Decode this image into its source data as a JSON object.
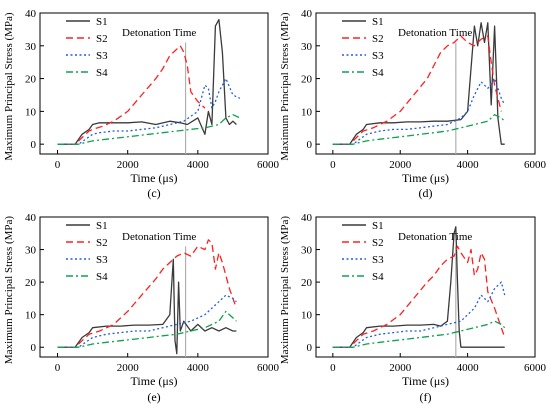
{
  "colors": {
    "S1": "#3a3a3a",
    "S2": "#ff2020",
    "S3": "#1f5fe0",
    "S4": "#10a050",
    "detonation_line": "#b0b0b0",
    "axis": "#000000"
  },
  "chart_data": [
    {
      "type": "line",
      "panel_label": "(c)",
      "xlabel": "Time (μs)",
      "ylabel": "Maximum Principal Stress (MPa)",
      "xlim": [
        -500,
        6000
      ],
      "ylim": [
        -3,
        40
      ],
      "xticks": [
        0,
        2000,
        4000,
        6000
      ],
      "yticks": [
        0,
        10,
        20,
        30,
        40
      ],
      "detonation_time": 3650,
      "annotation": "Detonation Time",
      "legend": [
        "S1",
        "S2",
        "S3",
        "S4"
      ],
      "legend_position": "top-left",
      "series": [
        {
          "name": "S1",
          "style": "solid",
          "x": [
            0,
            500,
            700,
            900,
            1000,
            1200,
            1600,
            2000,
            2400,
            2800,
            3200,
            3500,
            3700,
            4000,
            4200,
            4300,
            4400,
            4500,
            4600,
            4700,
            4800,
            4900,
            5000,
            5100
          ],
          "y": [
            0,
            0,
            3,
            4.5,
            6,
            6.5,
            6.5,
            6.5,
            6.8,
            6,
            7,
            6.5,
            6,
            8,
            3,
            10,
            6,
            36,
            38,
            28,
            8,
            6,
            7,
            6
          ]
        },
        {
          "name": "S2",
          "style": "dashed",
          "x": [
            0,
            500,
            700,
            900,
            1000,
            1300,
            1600,
            2000,
            2400,
            2800,
            3000,
            3200,
            3400,
            3500,
            3600,
            3700,
            3800,
            4000,
            4100,
            4200
          ],
          "y": [
            0,
            0,
            2,
            4,
            4.5,
            5.5,
            7,
            10,
            15,
            20,
            23,
            27,
            29,
            30,
            28,
            24,
            16,
            13,
            12,
            11
          ]
        },
        {
          "name": "S3",
          "style": "dotted",
          "x": [
            0,
            600,
            800,
            1000,
            1200,
            1600,
            2000,
            2400,
            2800,
            3200,
            3600,
            4000,
            4200,
            4300,
            4400,
            4500,
            4600,
            4800,
            5000,
            5200
          ],
          "y": [
            0,
            0,
            1.5,
            3,
            3.5,
            4,
            4,
            4.5,
            5,
            6,
            7,
            10,
            18,
            17,
            11,
            13,
            16,
            20,
            15,
            14
          ]
        },
        {
          "name": "S4",
          "style": "dashdot",
          "x": [
            0,
            600,
            800,
            1000,
            1400,
            1800,
            2200,
            2600,
            3000,
            3400,
            3800,
            4200,
            4600,
            4800,
            5000,
            5200
          ],
          "y": [
            0,
            0,
            0.5,
            1,
            1.5,
            2,
            2.5,
            3,
            3.5,
            4,
            4.5,
            5,
            6,
            8,
            9,
            8
          ]
        }
      ]
    },
    {
      "type": "line",
      "panel_label": "(d)",
      "xlabel": "Time (μs)",
      "ylabel": "Maximum Principal Stress (MPa)",
      "xlim": [
        -500,
        6000
      ],
      "ylim": [
        -3,
        40
      ],
      "xticks": [
        0,
        2000,
        4000,
        6000
      ],
      "yticks": [
        0,
        10,
        20,
        30,
        40
      ],
      "detonation_time": 3650,
      "annotation": "Detonation Time",
      "legend": [
        "S1",
        "S2",
        "S3",
        "S4"
      ],
      "legend_position": "top-left",
      "series": [
        {
          "name": "S1",
          "style": "solid",
          "x": [
            0,
            500,
            700,
            900,
            1000,
            1400,
            1800,
            2200,
            2600,
            3000,
            3400,
            3800,
            4000,
            4200,
            4300,
            4400,
            4500,
            4600,
            4700,
            4800,
            4900,
            5000,
            5100
          ],
          "y": [
            0,
            0,
            3,
            4.5,
            6,
            6.5,
            6.5,
            6.8,
            6.8,
            7,
            7,
            7.5,
            10,
            36,
            30,
            37,
            31,
            37,
            12,
            36,
            8,
            0,
            0
          ]
        },
        {
          "name": "S2",
          "style": "dashed",
          "x": [
            0,
            500,
            700,
            900,
            1200,
            1600,
            2000,
            2400,
            2800,
            3000,
            3200,
            3400,
            3600,
            3800,
            4000,
            4200,
            4400,
            4600,
            4700,
            4800,
            4900,
            5000
          ],
          "y": [
            0,
            0,
            2,
            4,
            5,
            7,
            10,
            15,
            20,
            24,
            28,
            30,
            31,
            33,
            31,
            30,
            32,
            33,
            25,
            18,
            14,
            10
          ]
        },
        {
          "name": "S3",
          "style": "dotted",
          "x": [
            0,
            600,
            800,
            1000,
            1400,
            1800,
            2200,
            2600,
            3000,
            3400,
            3800,
            4000,
            4200,
            4400,
            4600,
            4800,
            5000,
            5100
          ],
          "y": [
            0,
            0,
            1.5,
            3,
            4,
            4.5,
            4.5,
            5,
            5.5,
            6,
            8,
            10,
            15,
            19,
            17,
            20,
            14,
            12
          ]
        },
        {
          "name": "S4",
          "style": "dashdot",
          "x": [
            0,
            600,
            800,
            1000,
            1400,
            1800,
            2200,
            2600,
            3000,
            3400,
            3800,
            4200,
            4600,
            4800,
            5000,
            5100
          ],
          "y": [
            0,
            0,
            0.5,
            1,
            1.5,
            2,
            2.5,
            3,
            3.5,
            4,
            5,
            6,
            7,
            9,
            8,
            7
          ]
        }
      ]
    },
    {
      "type": "line",
      "panel_label": "(e)",
      "xlabel": "Time (μs)",
      "ylabel": "Maximum Principal Stress (MPa)",
      "xlim": [
        -500,
        6000
      ],
      "ylim": [
        -3,
        40
      ],
      "xticks": [
        0,
        2000,
        4000,
        6000
      ],
      "yticks": [
        0,
        10,
        20,
        30,
        40
      ],
      "detonation_time": 3650,
      "annotation": "Detonation Time",
      "legend": [
        "S1",
        "S2",
        "S3",
        "S4"
      ],
      "legend_position": "top-left",
      "series": [
        {
          "name": "S1",
          "style": "solid",
          "x": [
            0,
            500,
            700,
            900,
            1000,
            1400,
            1800,
            2200,
            2600,
            3000,
            3200,
            3300,
            3350,
            3400,
            3450,
            3500,
            3600,
            3800,
            4000,
            4200,
            4400,
            4600,
            4800,
            5000,
            5100
          ],
          "y": [
            0,
            0,
            3,
            4.5,
            6,
            6.5,
            6.5,
            6.8,
            6.8,
            7,
            10,
            27,
            2,
            -2,
            20,
            5,
            8,
            5,
            7,
            5,
            6,
            5,
            6,
            5,
            5
          ]
        },
        {
          "name": "S2",
          "style": "dashed",
          "x": [
            0,
            500,
            700,
            900,
            1200,
            1600,
            2000,
            2400,
            2800,
            3000,
            3200,
            3400,
            3600,
            3800,
            4000,
            4200,
            4300,
            4400,
            4500,
            4600,
            4700,
            4800,
            4900,
            5000,
            5100
          ],
          "y": [
            0,
            0,
            2,
            4,
            5,
            7,
            11,
            16,
            21,
            24,
            26,
            28,
            29,
            28,
            31,
            30,
            33,
            32,
            24,
            29,
            26,
            22,
            18,
            15,
            12
          ]
        },
        {
          "name": "S3",
          "style": "dotted",
          "x": [
            0,
            600,
            800,
            1000,
            1400,
            1800,
            2200,
            2600,
            3000,
            3400,
            3800,
            4200,
            4600,
            4800,
            5000,
            5100
          ],
          "y": [
            0,
            0,
            1.5,
            3,
            4,
            4.5,
            5,
            5,
            6,
            7,
            8,
            10,
            14,
            16,
            15,
            14
          ]
        },
        {
          "name": "S4",
          "style": "dashdot",
          "x": [
            0,
            600,
            800,
            1000,
            1400,
            1800,
            2200,
            2600,
            3000,
            3400,
            3800,
            4200,
            4600,
            4800,
            5000,
            5100
          ],
          "y": [
            0,
            0,
            0.5,
            1,
            1.5,
            2,
            2.5,
            3,
            3.5,
            4,
            5,
            6,
            8,
            11,
            9,
            8
          ]
        }
      ]
    },
    {
      "type": "line",
      "panel_label": "(f)",
      "xlabel": "Time (μs)",
      "ylabel": "Maximum Principal Stress (MPa)",
      "xlim": [
        -500,
        6000
      ],
      "ylim": [
        -3,
        40
      ],
      "xticks": [
        0,
        2000,
        4000,
        6000
      ],
      "yticks": [
        0,
        10,
        20,
        30,
        40
      ],
      "detonation_time": 3650,
      "annotation": "Detonation Time",
      "legend": [
        "S1",
        "S2",
        "S3",
        "S4"
      ],
      "legend_position": "top-left",
      "series": [
        {
          "name": "S1",
          "style": "solid",
          "x": [
            0,
            500,
            700,
            900,
            1000,
            1400,
            1800,
            2200,
            2600,
            3000,
            3200,
            3400,
            3500,
            3600,
            3650,
            3700,
            3750,
            3800,
            3900,
            4200,
            4600,
            5000,
            5100
          ],
          "y": [
            0,
            0,
            3,
            4.5,
            6,
            6.5,
            6.5,
            6.8,
            6.8,
            7,
            6.5,
            8,
            20,
            35,
            37,
            20,
            5,
            0,
            0,
            0,
            0,
            0,
            0
          ]
        },
        {
          "name": "S2",
          "style": "dashed",
          "x": [
            0,
            500,
            700,
            900,
            1200,
            1600,
            2000,
            2400,
            2800,
            3000,
            3200,
            3400,
            3600,
            3700,
            3800,
            4000,
            4100,
            4200,
            4300,
            4400,
            4500,
            4600,
            4800,
            5000,
            5100
          ],
          "y": [
            0,
            0,
            2,
            4,
            5,
            7,
            10,
            15,
            20,
            22,
            25,
            27,
            28,
            31,
            29,
            26,
            30,
            22,
            24,
            29,
            27,
            17,
            12,
            6,
            3
          ]
        },
        {
          "name": "S3",
          "style": "dotted",
          "x": [
            0,
            600,
            800,
            1000,
            1400,
            1800,
            2200,
            2600,
            3000,
            3400,
            3800,
            4200,
            4400,
            4600,
            4800,
            5000,
            5100
          ],
          "y": [
            0,
            0,
            1.5,
            3,
            4,
            4.5,
            5,
            5,
            6,
            7,
            8,
            12,
            16,
            14,
            18,
            20,
            16
          ]
        },
        {
          "name": "S4",
          "style": "dashdot",
          "x": [
            0,
            600,
            800,
            1000,
            1400,
            1800,
            2200,
            2600,
            3000,
            3400,
            3800,
            4200,
            4600,
            4800,
            5000,
            5100
          ],
          "y": [
            0,
            0,
            0.5,
            1,
            1.5,
            2,
            2.5,
            3,
            3.5,
            4,
            5,
            6,
            7,
            8,
            7,
            6
          ]
        }
      ]
    }
  ]
}
